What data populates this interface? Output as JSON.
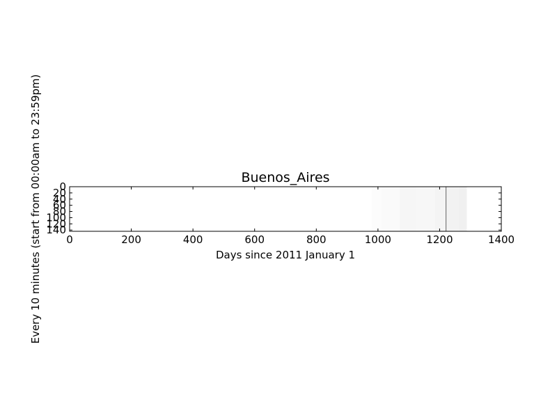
{
  "chart_data": {
    "type": "heatmap",
    "title": "Buenos_Aires",
    "xlabel": "Days since 2011 January 1",
    "ylabel": "Every 10 minutes (start from 00:00am to 23:59pm)",
    "xlim": [
      0,
      1400
    ],
    "ylim": [
      144,
      0
    ],
    "xticks": [
      0,
      200,
      400,
      600,
      800,
      1000,
      1200,
      1400
    ],
    "yticks": [
      0,
      20,
      40,
      60,
      80,
      100,
      120,
      140
    ],
    "colormap": "gray_r",
    "background_color": "#ffffff",
    "grid": false,
    "legend": "none",
    "blocks": [
      {
        "x": [
          980,
          1010
        ],
        "y": [
          0,
          144
        ],
        "shade": 0.012
      },
      {
        "x": [
          1010,
          1070
        ],
        "y": [
          0,
          144
        ],
        "shade": 0.02
      },
      {
        "x": [
          1070,
          1125
        ],
        "y": [
          0,
          144
        ],
        "shade": 0.035
      },
      {
        "x": [
          1125,
          1185
        ],
        "y": [
          0,
          144
        ],
        "shade": 0.03
      },
      {
        "x": [
          1185,
          1220
        ],
        "y": [
          0,
          144
        ],
        "shade": 0.045
      },
      {
        "x": [
          1220,
          1222
        ],
        "y": [
          0,
          144
        ],
        "shade": 0.75
      },
      {
        "x": [
          1222,
          1262
        ],
        "y": [
          0,
          144
        ],
        "shade": 0.05
      },
      {
        "x": [
          1262,
          1288
        ],
        "y": [
          0,
          144
        ],
        "shade": 0.06
      }
    ]
  }
}
